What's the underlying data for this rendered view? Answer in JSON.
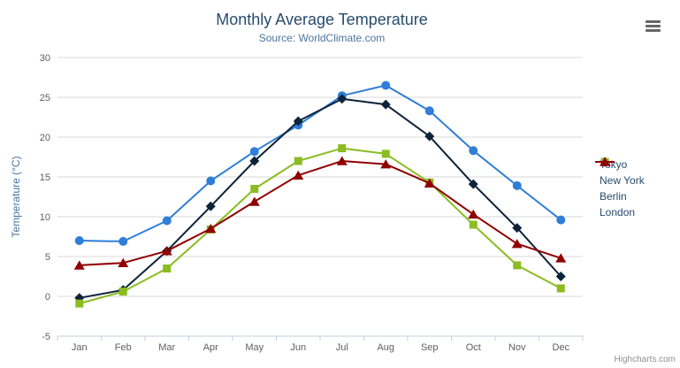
{
  "chart_data": {
    "type": "line",
    "title": "Monthly Average Temperature",
    "subtitle": "Source: WorldClimate.com",
    "categories": [
      "Jan",
      "Feb",
      "Mar",
      "Apr",
      "May",
      "Jun",
      "Jul",
      "Aug",
      "Sep",
      "Oct",
      "Nov",
      "Dec"
    ],
    "xlabel": "",
    "ylabel": "Temperature (°C)",
    "ylim": [
      -5,
      30
    ],
    "ytick_step": 5,
    "grid": true,
    "legend_position": "right",
    "series": [
      {
        "name": "Tokyo",
        "color": "#2f7ed8",
        "marker": "circle",
        "values": [
          7.0,
          6.9,
          9.5,
          14.5,
          18.2,
          21.5,
          25.2,
          26.5,
          23.3,
          18.3,
          13.9,
          9.6
        ]
      },
      {
        "name": "New York",
        "color": "#0d233a",
        "marker": "diamond",
        "values": [
          -0.2,
          0.8,
          5.7,
          11.3,
          17.0,
          22.0,
          24.8,
          24.1,
          20.1,
          14.1,
          8.6,
          2.5
        ]
      },
      {
        "name": "Berlin",
        "color": "#8bbc21",
        "marker": "square",
        "values": [
          -0.9,
          0.6,
          3.5,
          8.4,
          13.5,
          17.0,
          18.6,
          17.9,
          14.3,
          9.0,
          3.9,
          1.0
        ]
      },
      {
        "name": "London",
        "color": "#910000",
        "marker": "triangle",
        "values": [
          3.9,
          4.2,
          5.7,
          8.5,
          11.9,
          15.2,
          17.0,
          16.6,
          14.2,
          10.3,
          6.6,
          4.8
        ]
      }
    ]
  },
  "credits_label": "Highcharts.com",
  "export_menu_icon": "hamburger-menu-icon",
  "colors": {
    "title": "#274b6d",
    "subtitle": "#4d759e",
    "axis_label": "#606060",
    "axis_title": "#4d759e",
    "grid": "#d8d8d8",
    "axis_line": "#c0d0e0",
    "legend_text": "#274b6d",
    "credits": "#909090",
    "background": "#ffffff"
  }
}
